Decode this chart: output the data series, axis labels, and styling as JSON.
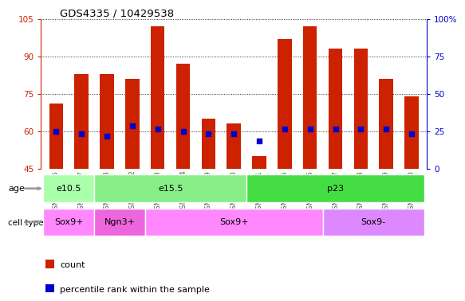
{
  "title": "GDS4335 / 10429538",
  "samples": [
    "GSM841156",
    "GSM841157",
    "GSM841158",
    "GSM841162",
    "GSM841163",
    "GSM841164",
    "GSM841159",
    "GSM841160",
    "GSM841161",
    "GSM841165",
    "GSM841166",
    "GSM841167",
    "GSM841168",
    "GSM841169",
    "GSM841170"
  ],
  "bar_heights": [
    71,
    83,
    83,
    81,
    102,
    87,
    65,
    63,
    50,
    97,
    102,
    93,
    93,
    81,
    74
  ],
  "blue_dots": [
    60,
    59,
    58,
    62,
    61,
    60,
    59,
    59,
    56,
    61,
    61,
    61,
    61,
    61,
    59
  ],
  "ylim_left": [
    45,
    105
  ],
  "ylim_right": [
    0,
    100
  ],
  "left_ticks": [
    45,
    60,
    75,
    90,
    105
  ],
  "right_ticks": [
    0,
    25,
    50,
    75,
    100
  ],
  "right_tick_labels": [
    "0",
    "25",
    "50",
    "75",
    "100%"
  ],
  "bar_color": "#cc2200",
  "dot_color": "#0000cc",
  "age_groups_raw": [
    {
      "label": "e10.5",
      "start": 0,
      "end": 2,
      "color": "#aaffaa"
    },
    {
      "label": "e15.5",
      "start": 2,
      "end": 8,
      "color": "#88ee88"
    },
    {
      "label": "p23",
      "start": 8,
      "end": 15,
      "color": "#44dd44"
    }
  ],
  "cell_groups_raw": [
    {
      "label": "Sox9+",
      "start": 0,
      "end": 2,
      "color": "#ff88ff"
    },
    {
      "label": "Ngn3+",
      "start": 2,
      "end": 4,
      "color": "#ee66dd"
    },
    {
      "label": "Sox9+",
      "start": 4,
      "end": 11,
      "color": "#ff88ff"
    },
    {
      "label": "Sox9-",
      "start": 11,
      "end": 15,
      "color": "#dd88ff"
    }
  ],
  "left_axis_color": "#cc2200",
  "right_axis_color": "#0000cc",
  "xticklabel_color": "#555555",
  "legend_count_color": "#cc2200",
  "legend_pct_color": "#0000cc",
  "bg_color": "#ffffff"
}
